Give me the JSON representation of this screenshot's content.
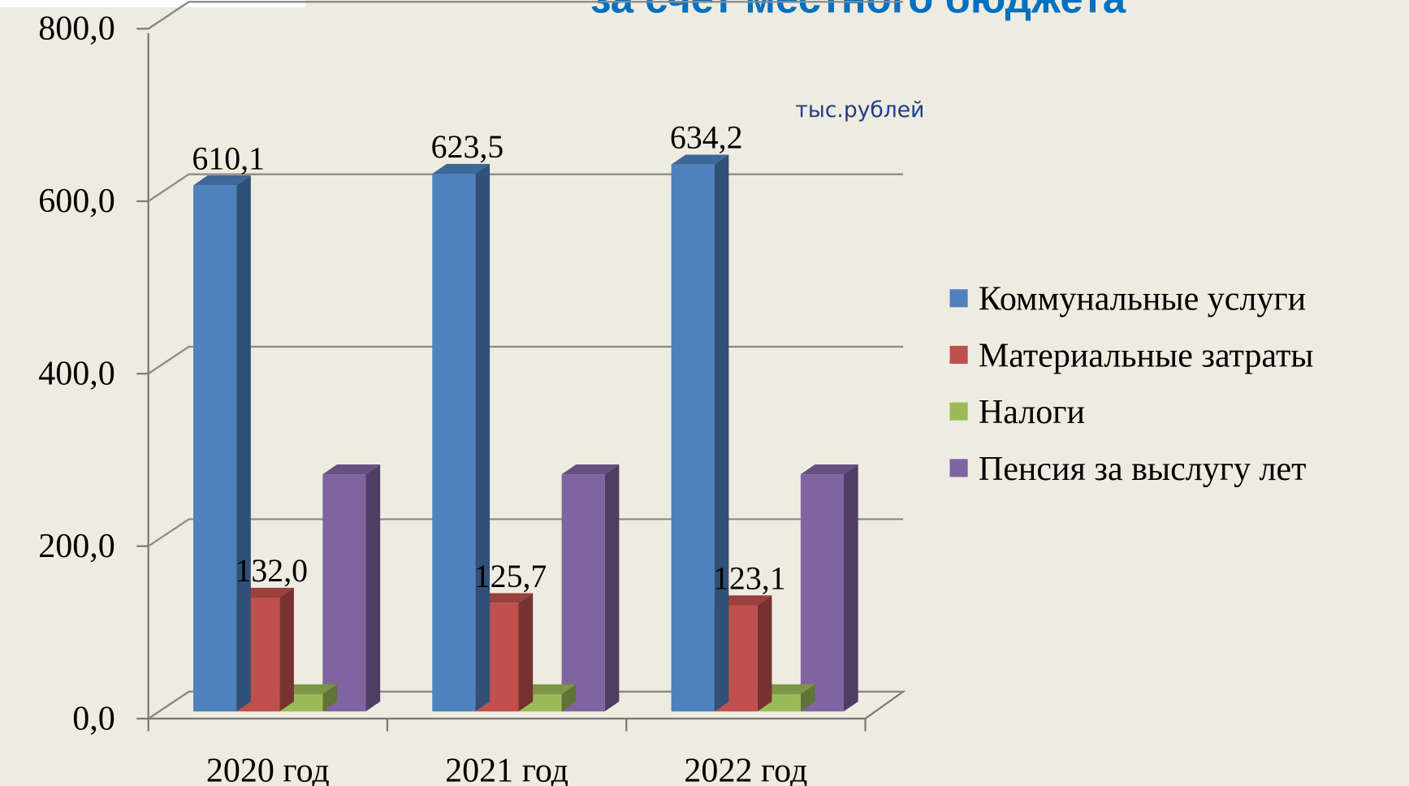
{
  "chart_data": {
    "type": "bar3d",
    "title": "за счет местного бюджета",
    "annotation": "тыс.рублей",
    "categories": [
      "2020 год",
      "2021 год",
      "2022 год"
    ],
    "series": [
      {
        "name": "Коммунальные услуги",
        "color": "#4f81bd",
        "values": [
          610.1,
          623.5,
          634.2
        ],
        "value_labels": [
          "610,1",
          "623,5",
          "634,2"
        ]
      },
      {
        "name": "Материальные затраты",
        "color": "#c0504d",
        "values": [
          132.0,
          125.7,
          123.1
        ],
        "value_labels": [
          "132,0",
          "125,7",
          "123,1"
        ]
      },
      {
        "name": "Налоги",
        "color": "#9bbb59",
        "values": [
          20,
          20,
          20
        ]
      },
      {
        "name": "Пенсия  за выслугу лет",
        "color": "#8064a2",
        "values": [
          275,
          275,
          275
        ]
      }
    ],
    "ylim": [
      0,
      800
    ],
    "yticks": [
      {
        "value": 0,
        "label": "0,0"
      },
      {
        "value": 200,
        "label": "200,0"
      },
      {
        "value": 400,
        "label": "400,0"
      },
      {
        "value": 600,
        "label": "600,0"
      },
      {
        "value": 800,
        "label": "800,0"
      }
    ],
    "grid": true,
    "legend": "right"
  }
}
